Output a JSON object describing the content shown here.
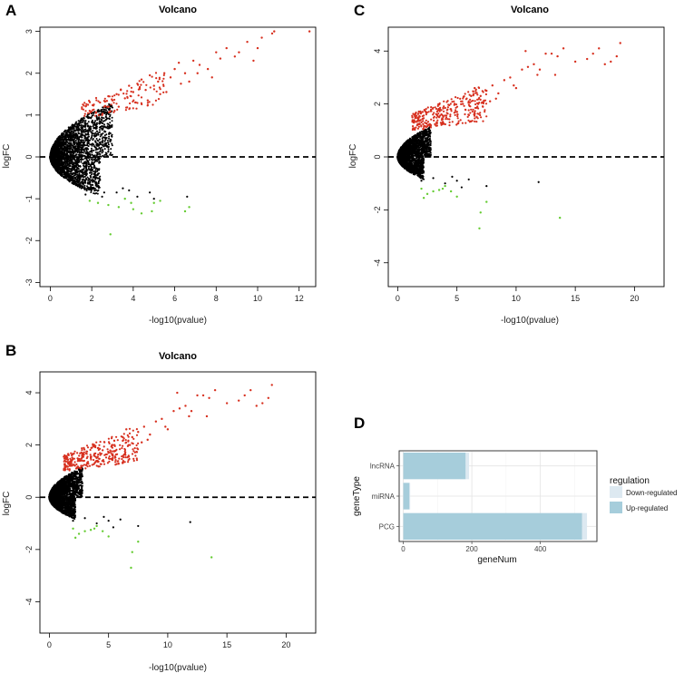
{
  "panels": {
    "A": "A",
    "B": "B",
    "C": "C",
    "D": "D"
  },
  "chart_data": [
    {
      "id": "A",
      "type": "scatter",
      "title": "Volcano",
      "xlabel": "-log10(pvalue)",
      "ylabel": "logFC",
      "xlim": [
        -0.5,
        12.8
      ],
      "ylim": [
        -3.1,
        3.1
      ],
      "xticks": [
        0,
        2,
        4,
        6,
        8,
        10,
        12
      ],
      "yticks": [
        -3,
        -2,
        -1,
        0,
        1,
        2,
        3
      ],
      "hline": 0,
      "colors": {
        "up": "#d7301f",
        "down": "#66cc33",
        "ns": "#000000"
      },
      "up_points": [
        [
          1.9,
          1.1
        ],
        [
          2.1,
          1.25
        ],
        [
          2.4,
          1.3
        ],
        [
          2.6,
          1.2
        ],
        [
          2.8,
          1.45
        ],
        [
          3.0,
          1.35
        ],
        [
          3.2,
          1.5
        ],
        [
          3.4,
          1.6
        ],
        [
          3.6,
          1.4
        ],
        [
          3.8,
          1.7
        ],
        [
          4.0,
          1.55
        ],
        [
          4.2,
          1.75
        ],
        [
          4.4,
          1.85
        ],
        [
          4.6,
          1.6
        ],
        [
          4.8,
          1.95
        ],
        [
          5.0,
          1.7
        ],
        [
          5.2,
          1.8
        ],
        [
          5.5,
          2.0
        ],
        [
          5.8,
          1.9
        ],
        [
          6.0,
          2.1
        ],
        [
          6.2,
          2.25
        ],
        [
          6.5,
          2.0
        ],
        [
          6.9,
          2.3
        ],
        [
          7.2,
          2.2
        ],
        [
          7.6,
          2.1
        ],
        [
          8.0,
          2.5
        ],
        [
          8.2,
          2.35
        ],
        [
          8.5,
          2.6
        ],
        [
          8.9,
          2.4
        ],
        [
          9.1,
          2.5
        ],
        [
          9.5,
          2.75
        ],
        [
          10.0,
          2.6
        ],
        [
          10.2,
          2.85
        ],
        [
          10.7,
          2.95
        ],
        [
          10.8,
          3.0
        ],
        [
          7.8,
          1.9
        ],
        [
          9.8,
          2.3
        ],
        [
          6.7,
          1.8
        ],
        [
          5.3,
          1.5
        ],
        [
          4.1,
          1.3
        ],
        [
          3.3,
          1.2
        ],
        [
          2.2,
          1.05
        ],
        [
          2.5,
          1.0
        ],
        [
          3.1,
          1.1
        ],
        [
          4.7,
          1.35
        ],
        [
          5.6,
          1.55
        ],
        [
          6.3,
          1.75
        ],
        [
          7.1,
          2.0
        ],
        [
          12.5,
          3.0
        ]
      ],
      "down_points": [
        [
          1.9,
          -1.05
        ],
        [
          2.3,
          -1.1
        ],
        [
          2.8,
          -1.15
        ],
        [
          3.3,
          -1.2
        ],
        [
          3.6,
          -1.0
        ],
        [
          4.0,
          -1.25
        ],
        [
          4.4,
          -1.35
        ],
        [
          4.9,
          -1.3
        ],
        [
          5.0,
          -1.1
        ],
        [
          6.5,
          -1.3
        ],
        [
          6.7,
          -1.2
        ],
        [
          2.9,
          -1.85
        ],
        [
          3.9,
          -1.1
        ],
        [
          5.3,
          -1.05
        ]
      ],
      "ns_scatter": [
        [
          1.5,
          -0.7
        ],
        [
          2.0,
          -0.75
        ],
        [
          2.6,
          -0.85
        ],
        [
          3.2,
          -0.85
        ],
        [
          3.5,
          -0.75
        ],
        [
          4.2,
          -0.95
        ],
        [
          4.8,
          -0.85
        ],
        [
          5.0,
          -1.0
        ],
        [
          6.6,
          -0.95
        ],
        [
          2.2,
          -0.65
        ],
        [
          3.8,
          -0.8
        ],
        [
          1.2,
          -0.6
        ],
        [
          1.7,
          -0.9
        ],
        [
          2.5,
          -0.95
        ]
      ],
      "ns_cloud": {
        "count": 3000,
        "x_max": 3.0,
        "y_max": 1.3,
        "lower_x_max": 2.4,
        "lower_y_max": 0.95
      },
      "up_cloud": {
        "count": 110,
        "x_range": [
          1.5,
          5.5
        ],
        "y_range": [
          0.9,
          1.75
        ]
      }
    },
    {
      "id": "B",
      "type": "scatter",
      "title": "Volcano",
      "xlabel": "-log10(pvalue)",
      "ylabel": "logFC",
      "xlim": [
        -0.8,
        22.5
      ],
      "ylim": [
        -5.2,
        4.8
      ],
      "xticks": [
        0,
        5,
        10,
        15,
        20
      ],
      "yticks": [
        -4,
        -2,
        0,
        2,
        4
      ],
      "hline": 0,
      "colors": {
        "up": "#d7301f",
        "down": "#66cc33",
        "ns": "#000000"
      },
      "up_points": [
        [
          3.5,
          1.5
        ],
        [
          4.5,
          1.8
        ],
        [
          5.5,
          2.0
        ],
        [
          6.2,
          2.3
        ],
        [
          7.0,
          2.3
        ],
        [
          7.5,
          2.5
        ],
        [
          8.0,
          2.7
        ],
        [
          8.5,
          2.4
        ],
        [
          9.0,
          2.9
        ],
        [
          9.5,
          3.0
        ],
        [
          10.0,
          2.6
        ],
        [
          10.5,
          3.3
        ],
        [
          11.0,
          3.4
        ],
        [
          11.5,
          3.5
        ],
        [
          12.0,
          3.3
        ],
        [
          12.5,
          3.9
        ],
        [
          13.0,
          3.9
        ],
        [
          13.5,
          3.8
        ],
        [
          14.0,
          4.1
        ],
        [
          15.0,
          3.6
        ],
        [
          16.0,
          3.7
        ],
        [
          16.5,
          3.9
        ],
        [
          17.0,
          4.1
        ],
        [
          17.5,
          3.5
        ],
        [
          18.0,
          3.6
        ],
        [
          18.5,
          3.8
        ],
        [
          18.8,
          4.3
        ],
        [
          10.8,
          4.0
        ],
        [
          13.3,
          3.1
        ],
        [
          6.5,
          2.6
        ],
        [
          7.8,
          2.1
        ],
        [
          9.8,
          2.7
        ],
        [
          11.8,
          3.1
        ],
        [
          5.0,
          1.7
        ],
        [
          6.8,
          2.0
        ],
        [
          8.3,
          2.2
        ]
      ],
      "down_points": [
        [
          2.0,
          -1.2
        ],
        [
          2.5,
          -1.4
        ],
        [
          3.0,
          -1.3
        ],
        [
          3.5,
          -1.25
        ],
        [
          4.0,
          -1.1
        ],
        [
          4.5,
          -1.3
        ],
        [
          5.0,
          -1.5
        ],
        [
          2.2,
          -1.55
        ],
        [
          7.5,
          -1.7
        ],
        [
          7.0,
          -2.1
        ],
        [
          6.9,
          -2.7
        ],
        [
          13.7,
          -2.3
        ],
        [
          3.8,
          -1.2
        ]
      ],
      "ns_scatter": [
        [
          2.0,
          -0.9
        ],
        [
          3.0,
          -0.8
        ],
        [
          4.0,
          -1.0
        ],
        [
          5.0,
          -0.9
        ],
        [
          6.0,
          -0.85
        ],
        [
          7.5,
          -1.1
        ],
        [
          11.9,
          -0.95
        ],
        [
          5.4,
          -1.15
        ],
        [
          4.6,
          -0.75
        ]
      ],
      "ns_cloud": {
        "count": 3000,
        "x_max": 2.8,
        "y_max": 1.15,
        "lower_x_max": 2.2,
        "lower_y_max": 0.85
      },
      "up_cloud": {
        "count": 320,
        "x_range": [
          1.2,
          7.5
        ],
        "y_range": [
          1.0,
          2.4
        ]
      }
    },
    {
      "id": "C",
      "type": "scatter",
      "title": "Volcano",
      "xlabel": "-log10(pvalue)",
      "ylabel": "logFC",
      "xlim": [
        -0.8,
        22.5
      ],
      "ylim": [
        -4.9,
        4.9
      ],
      "xticks": [
        0,
        5,
        10,
        15,
        20
      ],
      "yticks": [
        -4,
        -2,
        0,
        2,
        4
      ],
      "hline": 0,
      "colors": {
        "up": "#d7301f",
        "down": "#66cc33",
        "ns": "#000000"
      },
      "up_points": [
        [
          3.5,
          1.5
        ],
        [
          4.5,
          1.8
        ],
        [
          5.5,
          2.0
        ],
        [
          6.2,
          2.3
        ],
        [
          7.0,
          2.3
        ],
        [
          7.5,
          2.5
        ],
        [
          8.0,
          2.7
        ],
        [
          8.5,
          2.4
        ],
        [
          9.0,
          2.9
        ],
        [
          9.5,
          3.0
        ],
        [
          10.0,
          2.6
        ],
        [
          10.5,
          3.3
        ],
        [
          11.0,
          3.4
        ],
        [
          11.5,
          3.5
        ],
        [
          12.0,
          3.3
        ],
        [
          12.5,
          3.9
        ],
        [
          13.0,
          3.9
        ],
        [
          13.5,
          3.8
        ],
        [
          14.0,
          4.1
        ],
        [
          15.0,
          3.6
        ],
        [
          16.0,
          3.7
        ],
        [
          16.5,
          3.9
        ],
        [
          17.0,
          4.1
        ],
        [
          17.5,
          3.5
        ],
        [
          18.0,
          3.6
        ],
        [
          18.5,
          3.8
        ],
        [
          18.8,
          4.3
        ],
        [
          10.8,
          4.0
        ],
        [
          13.3,
          3.1
        ],
        [
          6.5,
          2.6
        ],
        [
          7.8,
          2.1
        ],
        [
          9.8,
          2.7
        ],
        [
          11.8,
          3.1
        ],
        [
          5.0,
          1.7
        ],
        [
          6.8,
          2.0
        ],
        [
          8.3,
          2.2
        ]
      ],
      "down_points": [
        [
          2.0,
          -1.2
        ],
        [
          2.5,
          -1.4
        ],
        [
          3.0,
          -1.3
        ],
        [
          3.5,
          -1.25
        ],
        [
          4.0,
          -1.1
        ],
        [
          4.5,
          -1.3
        ],
        [
          5.0,
          -1.5
        ],
        [
          2.2,
          -1.55
        ],
        [
          7.5,
          -1.7
        ],
        [
          7.0,
          -2.1
        ],
        [
          6.9,
          -2.7
        ],
        [
          13.7,
          -2.3
        ],
        [
          3.8,
          -1.2
        ]
      ],
      "ns_scatter": [
        [
          2.0,
          -0.9
        ],
        [
          3.0,
          -0.8
        ],
        [
          4.0,
          -1.0
        ],
        [
          5.0,
          -0.9
        ],
        [
          6.0,
          -0.85
        ],
        [
          7.5,
          -1.1
        ],
        [
          11.9,
          -0.95
        ],
        [
          5.4,
          -1.15
        ],
        [
          4.6,
          -0.75
        ]
      ],
      "ns_cloud": {
        "count": 3000,
        "x_max": 2.8,
        "y_max": 1.15,
        "lower_x_max": 2.2,
        "lower_y_max": 0.85
      },
      "up_cloud": {
        "count": 320,
        "x_range": [
          1.2,
          7.5
        ],
        "y_range": [
          1.0,
          2.4
        ]
      }
    },
    {
      "id": "D",
      "type": "bar",
      "orientation": "horizontal",
      "stacked": true,
      "xlabel": "geneNum",
      "ylabel": "geneType",
      "categories": [
        "lncRNA",
        "miRNA",
        "PCG"
      ],
      "xlim": [
        -12,
        565
      ],
      "xticks": [
        0,
        200,
        400
      ],
      "series": [
        {
          "name": "Up-regulated",
          "color": "#a6cddb",
          "values": [
            182,
            18,
            522
          ]
        },
        {
          "name": "Down-regulated",
          "color": "#dde9f1",
          "values": [
            10,
            1,
            14
          ]
        }
      ],
      "legend_title": "regulation",
      "legend_order": [
        "Down-regulated",
        "Up-regulated"
      ],
      "legend_position": "right"
    }
  ]
}
